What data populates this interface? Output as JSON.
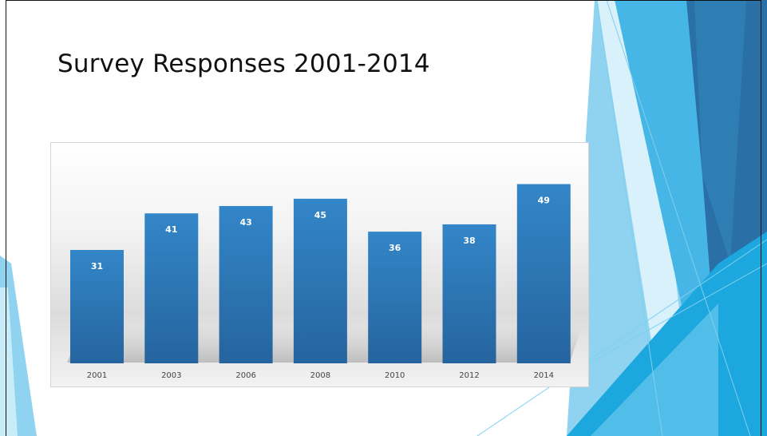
{
  "slide": {
    "title": "Survey Responses 2001-2014"
  },
  "chart_data": {
    "type": "bar",
    "title": "",
    "xlabel": "",
    "ylabel": "",
    "categories": [
      "2001",
      "2003",
      "2006",
      "2008",
      "2010",
      "2012",
      "2014"
    ],
    "values": [
      31,
      41,
      43,
      45,
      36,
      38,
      49
    ],
    "ylim": [
      0,
      62
    ],
    "data_labels": true,
    "grid": false,
    "legend": "none",
    "bar_color": "#2e78b8"
  },
  "theme": {
    "accent_dark": "#2a6fa6",
    "accent_mid": "#2c9fd6",
    "accent_light": "#7fd0ee"
  }
}
